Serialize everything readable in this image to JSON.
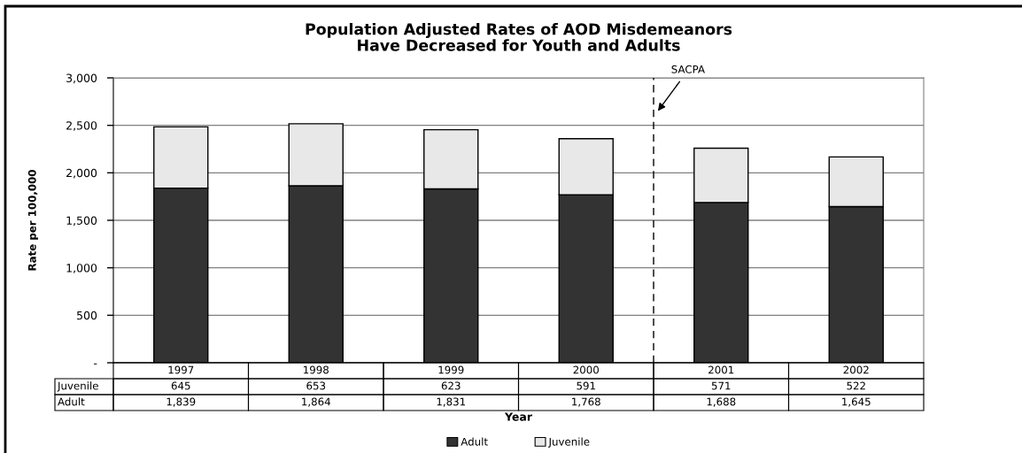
{
  "chart_data": {
    "type": "bar",
    "title": "Population Adjusted Rates of AOD Misdemeanors\nHave Decreased for Youth and Adults",
    "xlabel": "Year",
    "ylabel": "Rate per 100,000",
    "categories": [
      "1997",
      "1998",
      "1999",
      "2000",
      "2001",
      "2002"
    ],
    "stacked": true,
    "series": [
      {
        "name": "Adult",
        "color": "#333333",
        "values": [
          1839,
          1864,
          1831,
          1768,
          1688,
          1645
        ],
        "value_labels": [
          "1,839",
          "1,864",
          "1,831",
          "1,768",
          "1,688",
          "1,645"
        ]
      },
      {
        "name": "Juvenile",
        "color": "#e8e8e8",
        "values": [
          645,
          653,
          623,
          591,
          571,
          522
        ],
        "value_labels": [
          "645",
          "653",
          "623",
          "591",
          "571",
          "522"
        ]
      }
    ],
    "ylim": [
      0,
      3000
    ],
    "yticks": [
      {
        "value": 0,
        "label": "-"
      },
      500,
      {
        "value": 1000,
        "label": "1,000"
      },
      {
        "value": 1500,
        "label": "1,500"
      },
      {
        "value": 2000,
        "label": "2,000"
      },
      {
        "value": 2500,
        "label": "2,500"
      },
      {
        "value": 3000,
        "label": "3,000"
      }
    ],
    "grid": "y",
    "legend": "bottom",
    "ref_lines": [
      {
        "axis": "x",
        "value": "2001",
        "label": "SACPA",
        "line_style": "dashed",
        "color": "#000000"
      }
    ]
  }
}
